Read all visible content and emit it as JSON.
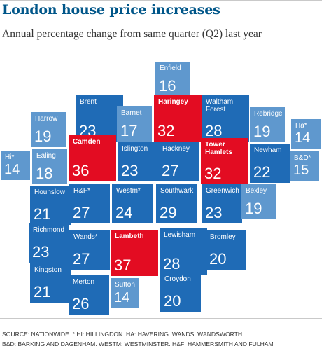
{
  "title": "London house price increases",
  "subtitle": "Annual percentage change from same quarter (Q2) last year",
  "source_line1": "Source: Nationwide.   * Hi: Hillingdon. Ha: Havering. Wands: Wandsworth.",
  "source_line2": "B&D: Barking and Dagenham. Westm: Westminster. H&F: Hammersmith and Fulham",
  "colors": {
    "title": "#005689",
    "high": "#e30c22",
    "mid": "#1f6bb6",
    "low": "#5f98ce"
  },
  "chart_data": {
    "type": "tile-map",
    "title": "London house price increases",
    "subtitle": "Annual percentage change from same quarter (Q2) last year",
    "unit": "%",
    "boroughs": [
      {
        "name": "Enfield",
        "value": 16,
        "band": "low"
      },
      {
        "name": "Brent",
        "value": 23,
        "band": "mid"
      },
      {
        "name": "Barnet",
        "value": 17,
        "band": "low"
      },
      {
        "name": "Haringey",
        "value": 32,
        "band": "high"
      },
      {
        "name": "Waltham Forest",
        "value": 28,
        "band": "mid"
      },
      {
        "name": "Harrow",
        "value": 19,
        "band": "low"
      },
      {
        "name": "Rebridge",
        "value": 19,
        "band": "low"
      },
      {
        "name": "Ha*",
        "value": 14,
        "band": "low"
      },
      {
        "name": "Hi*",
        "value": 14,
        "band": "low"
      },
      {
        "name": "Ealing",
        "value": 18,
        "band": "low"
      },
      {
        "name": "Camden",
        "value": 36,
        "band": "high"
      },
      {
        "name": "Islington",
        "value": 23,
        "band": "mid"
      },
      {
        "name": "Hackney",
        "value": 27,
        "band": "mid"
      },
      {
        "name": "Tower Hamlets",
        "value": 32,
        "band": "high"
      },
      {
        "name": "Newham",
        "value": 22,
        "band": "mid"
      },
      {
        "name": "B&D*",
        "value": 15,
        "band": "low"
      },
      {
        "name": "Hounslow",
        "value": 21,
        "band": "mid"
      },
      {
        "name": "H&F*",
        "value": 27,
        "band": "mid"
      },
      {
        "name": "Westm*",
        "value": 24,
        "band": "mid"
      },
      {
        "name": "Southwark",
        "value": 29,
        "band": "mid"
      },
      {
        "name": "Greenwich",
        "value": 23,
        "band": "mid"
      },
      {
        "name": "Bexley",
        "value": 19,
        "band": "low"
      },
      {
        "name": "Richmond",
        "value": 23,
        "band": "mid"
      },
      {
        "name": "Wands*",
        "value": 27,
        "band": "mid"
      },
      {
        "name": "Lambeth",
        "value": 37,
        "band": "high"
      },
      {
        "name": "Lewisham",
        "value": 28,
        "band": "mid"
      },
      {
        "name": "Bromley",
        "value": 20,
        "band": "mid"
      },
      {
        "name": "Kingston",
        "value": 21,
        "band": "mid"
      },
      {
        "name": "Merton",
        "value": 26,
        "band": "mid"
      },
      {
        "name": "Sutton",
        "value": 14,
        "band": "low"
      },
      {
        "name": "Croydon",
        "value": 20,
        "band": "mid"
      }
    ]
  }
}
